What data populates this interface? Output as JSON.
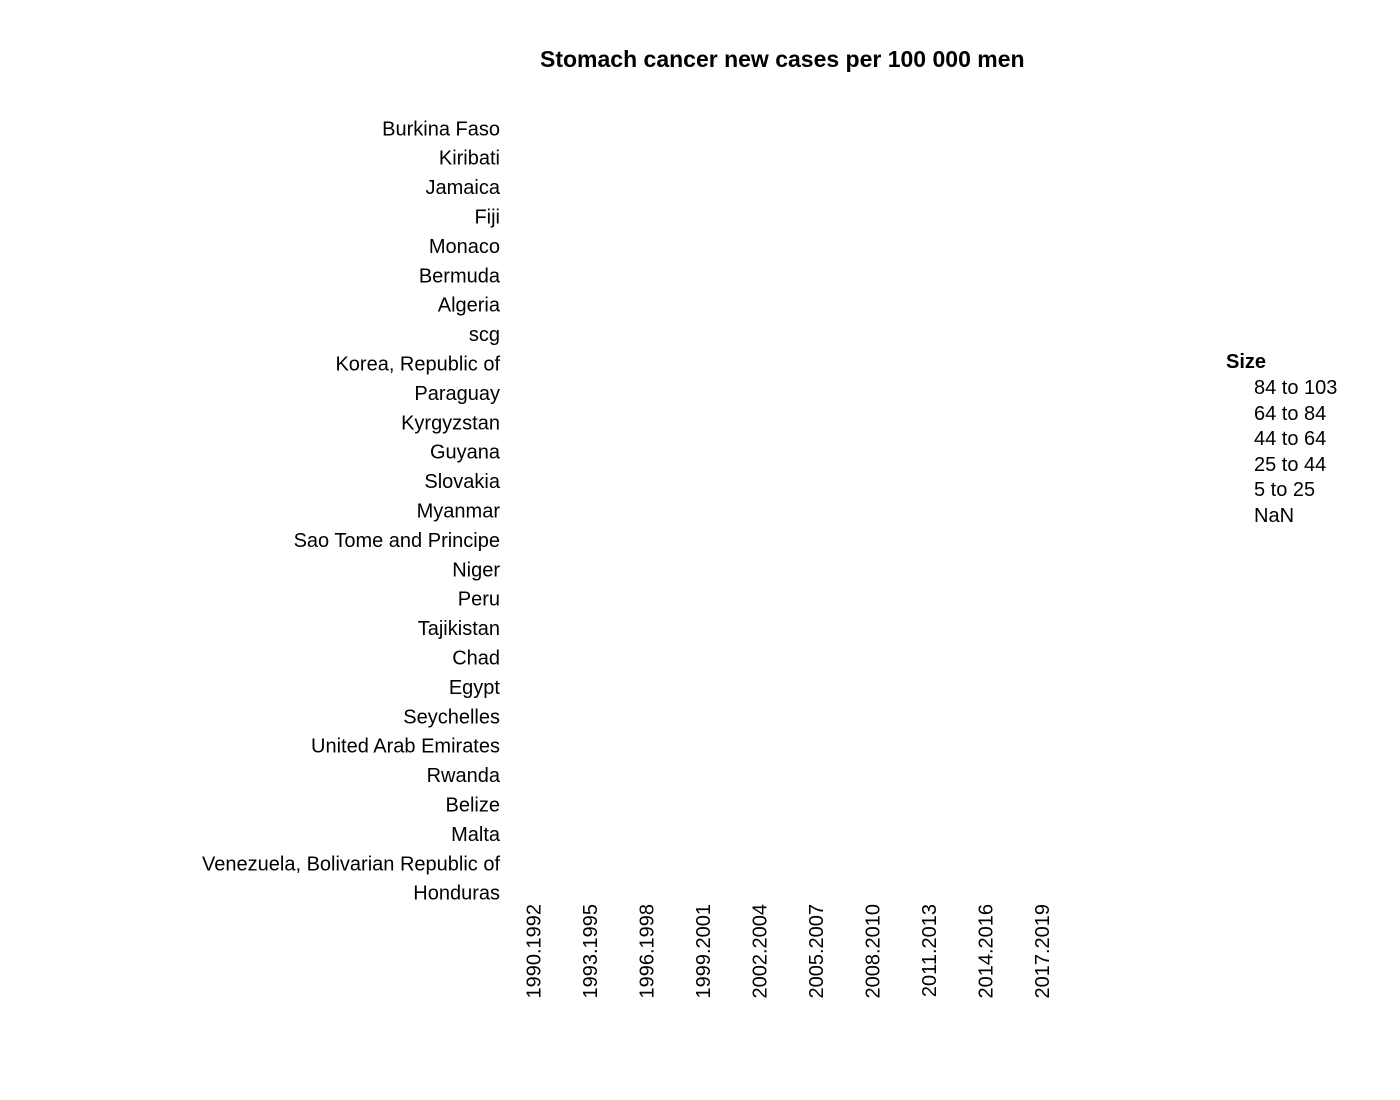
{
  "chart_data": {
    "type": "scatter",
    "title": "Stomach cancer new cases per 100 000 men",
    "xlabel": "",
    "ylabel": "",
    "x_categories": [
      "1990.1992",
      "1993.1995",
      "1996.1998",
      "1999.2001",
      "2002.2004",
      "2005.2007",
      "2008.2010",
      "2011.2013",
      "2014.2016",
      "2017.2019"
    ],
    "y_categories": [
      "Burkina Faso",
      "Kiribati",
      "Jamaica",
      "Fiji",
      "Monaco",
      "Bermuda",
      "Algeria",
      "scg",
      "Korea, Republic of",
      "Paraguay",
      "Kyrgyzstan",
      "Guyana",
      "Slovakia",
      "Myanmar",
      "Sao Tome and Principe",
      "Niger",
      "Peru",
      "Tajikistan",
      "Chad",
      "Egypt",
      "Seychelles",
      "United Arab Emirates",
      "Rwanda",
      "Belize",
      "Malta",
      "Venezuela, Bolivarian Republic of",
      "Honduras"
    ],
    "points": [],
    "grid": false,
    "legend": {
      "title": "Size",
      "placement": "right",
      "entries": [
        "84 to 103",
        "64 to 84",
        "44 to 64",
        "25 to 44",
        "5 to 25",
        "NaN"
      ]
    }
  }
}
